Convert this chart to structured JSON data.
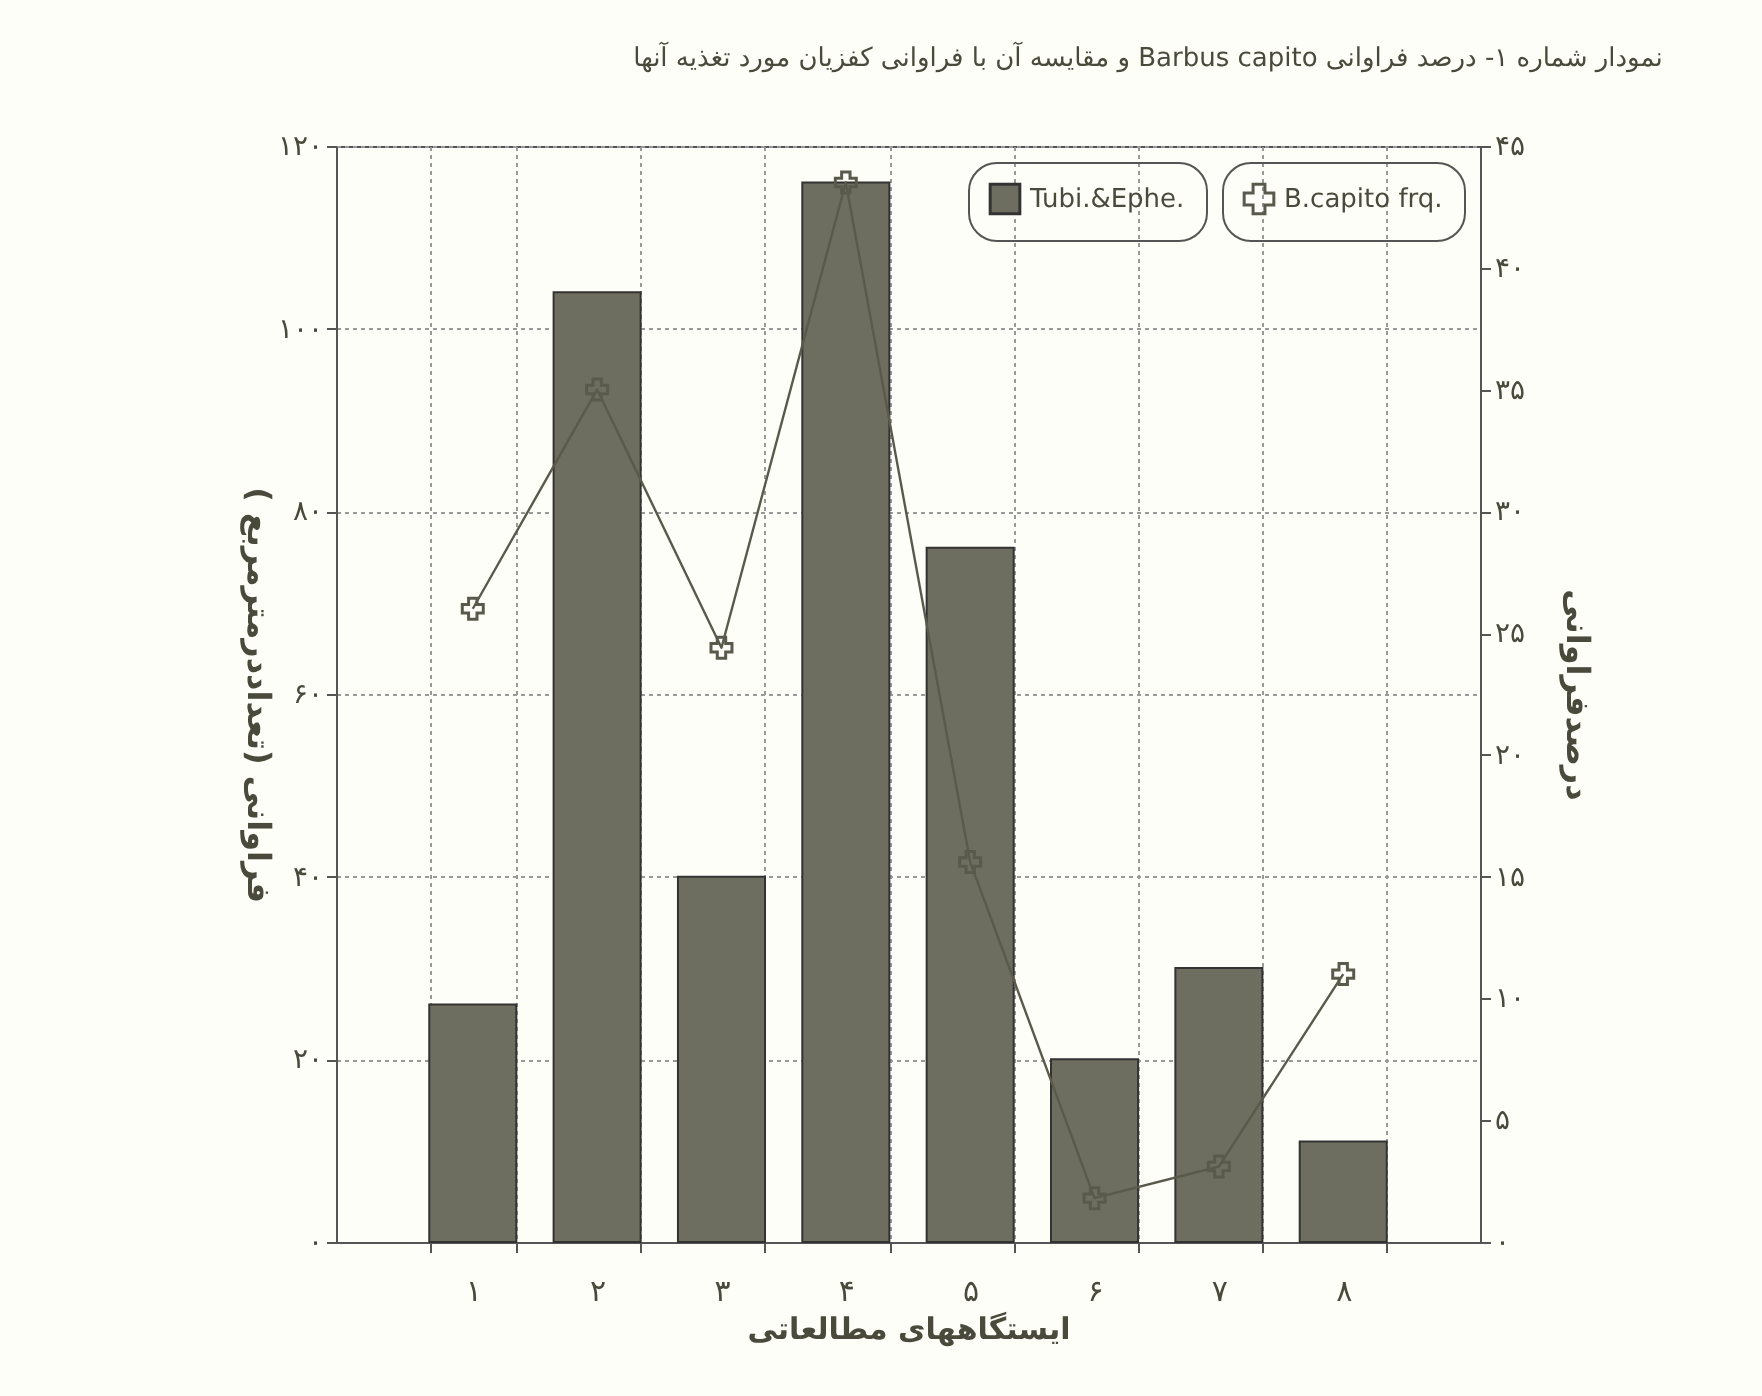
{
  "chart_data": {
    "type": "bar",
    "title": "نمودار شماره ۱- درصد فراوانی Barbus capito و مقایسه آن با فراوانی کفزیان مورد تغذیه آنها",
    "xlabel": "ایستگاههای مطالعاتی",
    "ylabel": "فراوانی (تعداددرمترمربع )",
    "y2label": "درصدفراوانی",
    "categories": [
      "۱",
      "۲",
      "۳",
      "۴",
      "۵",
      "۶",
      "۷",
      "۸"
    ],
    "series": [
      {
        "name": "Tubi.&Ephe.",
        "color": "#6e6e60",
        "values": [
          26,
          104,
          40,
          116,
          76,
          20,
          30,
          11
        ]
      },
      {
        "name": "B.capito frq.",
        "type": "line",
        "axis": "y2",
        "color": "#5a5a4c",
        "marker": "cross",
        "values": [
          26,
          35,
          24.4,
          43.5,
          15.6,
          1.8,
          3.1,
          11
        ]
      }
    ],
    "ylim": [
      0,
      120
    ],
    "yticks": [
      {
        "value": 0,
        "label": "۰"
      },
      {
        "value": 20,
        "label": "۲۰"
      },
      {
        "value": 40,
        "label": "۴۰"
      },
      {
        "value": 60,
        "label": "۶۰"
      },
      {
        "value": 80,
        "label": "۸۰"
      },
      {
        "value": 100,
        "label": "۱۰۰"
      },
      {
        "value": 120,
        "label": "۱۲۰"
      }
    ],
    "y2lim": [
      0,
      45
    ],
    "y2ticks": [
      {
        "value": 0,
        "label": "۰"
      },
      {
        "value": 5,
        "label": "۵"
      },
      {
        "value": 10,
        "label": "۱۰"
      },
      {
        "value": 15,
        "label": "۱۵"
      },
      {
        "value": 20,
        "label": "۲۰"
      },
      {
        "value": 25,
        "label": "۲۵"
      },
      {
        "value": 30,
        "label": "۳۰"
      },
      {
        "value": 35,
        "label": "۳۵"
      },
      {
        "value": 40,
        "label": "۴۰"
      },
      {
        "value": 45,
        "label": "۴۵"
      }
    ],
    "grid": true,
    "legend": "top right"
  }
}
